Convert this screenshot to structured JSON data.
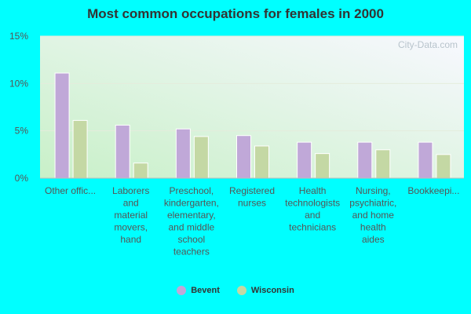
{
  "chart_data": {
    "type": "bar",
    "title": "Most common occupations for females in 2000",
    "categories": [
      [
        "Other offic..."
      ],
      [
        "Laborers",
        "and",
        "material",
        "movers,",
        "hand"
      ],
      [
        "Preschool,",
        "kindergarten,",
        "elementary,",
        "and middle",
        "school",
        "teachers"
      ],
      [
        "Registered",
        "nurses"
      ],
      [
        "Health",
        "technologists",
        "and",
        "technicians"
      ],
      [
        "Nursing,",
        "psychiatric,",
        "and home",
        "health",
        "aides"
      ],
      [
        "Bookkeepi..."
      ]
    ],
    "series": [
      {
        "name": "Bevent",
        "color": "#c0a8d8",
        "values": [
          11.1,
          5.6,
          5.2,
          4.5,
          3.8,
          3.8,
          3.8
        ]
      },
      {
        "name": "Wisconsin",
        "color": "#c4d8a4",
        "values": [
          6.1,
          1.6,
          4.4,
          3.4,
          2.6,
          3.0,
          2.5
        ]
      }
    ],
    "yticks": [
      "0%",
      "5%",
      "10%",
      "15%"
    ],
    "ytick_values": [
      0,
      5,
      10,
      15
    ],
    "ylim": [
      0,
      15
    ],
    "grid": true,
    "legend_position": "bottom-center",
    "watermark": "City-Data.com"
  }
}
